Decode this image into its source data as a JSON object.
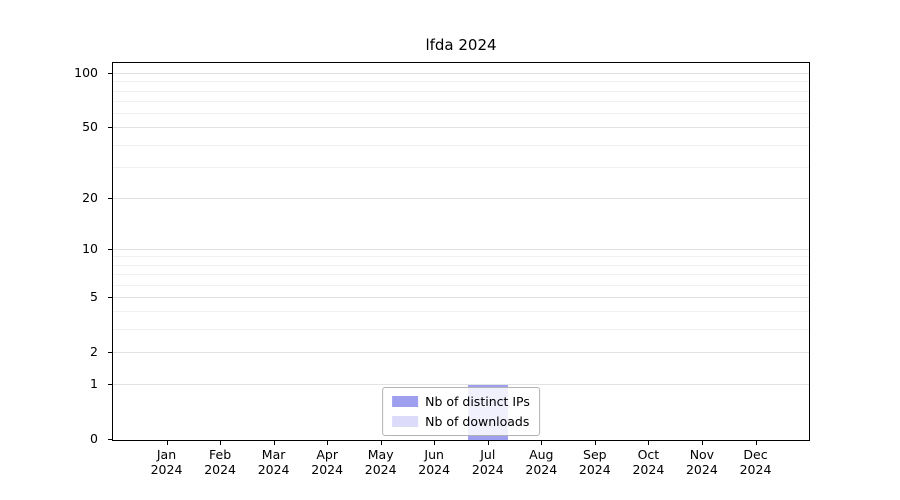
{
  "chart_data": {
    "type": "bar",
    "title": "lfda 2024",
    "x": [
      "Jan 2024",
      "Feb 2024",
      "Mar 2024",
      "Apr 2024",
      "May 2024",
      "Jun 2024",
      "Jul 2024",
      "Aug 2024",
      "Sep 2024",
      "Oct 2024",
      "Nov 2024",
      "Dec 2024"
    ],
    "series": [
      {
        "name": "Nb of downloads",
        "color": "#dcdcfa",
        "values": [
          0,
          0,
          0,
          0,
          0,
          0,
          1,
          0,
          0,
          0,
          0,
          0
        ]
      },
      {
        "name": "Nb of distinct IPs",
        "color": "#9f9fef",
        "values": [
          0,
          0,
          0,
          0,
          0,
          0,
          1,
          0,
          0,
          0,
          0,
          0
        ]
      }
    ],
    "legend_order": [
      1,
      0
    ],
    "legend_position": "lower center inside",
    "yscale": "log1p",
    "ylim": [
      0,
      115
    ],
    "y_ticks": [
      0,
      1,
      2,
      5,
      10,
      20,
      50,
      100
    ],
    "y_minor_ticks": [
      3,
      4,
      6,
      7,
      8,
      9,
      30,
      40,
      60,
      70,
      80,
      90
    ],
    "xlim": [
      -1,
      12
    ],
    "bar_width_fraction": 0.75,
    "grid": "horizontal"
  }
}
